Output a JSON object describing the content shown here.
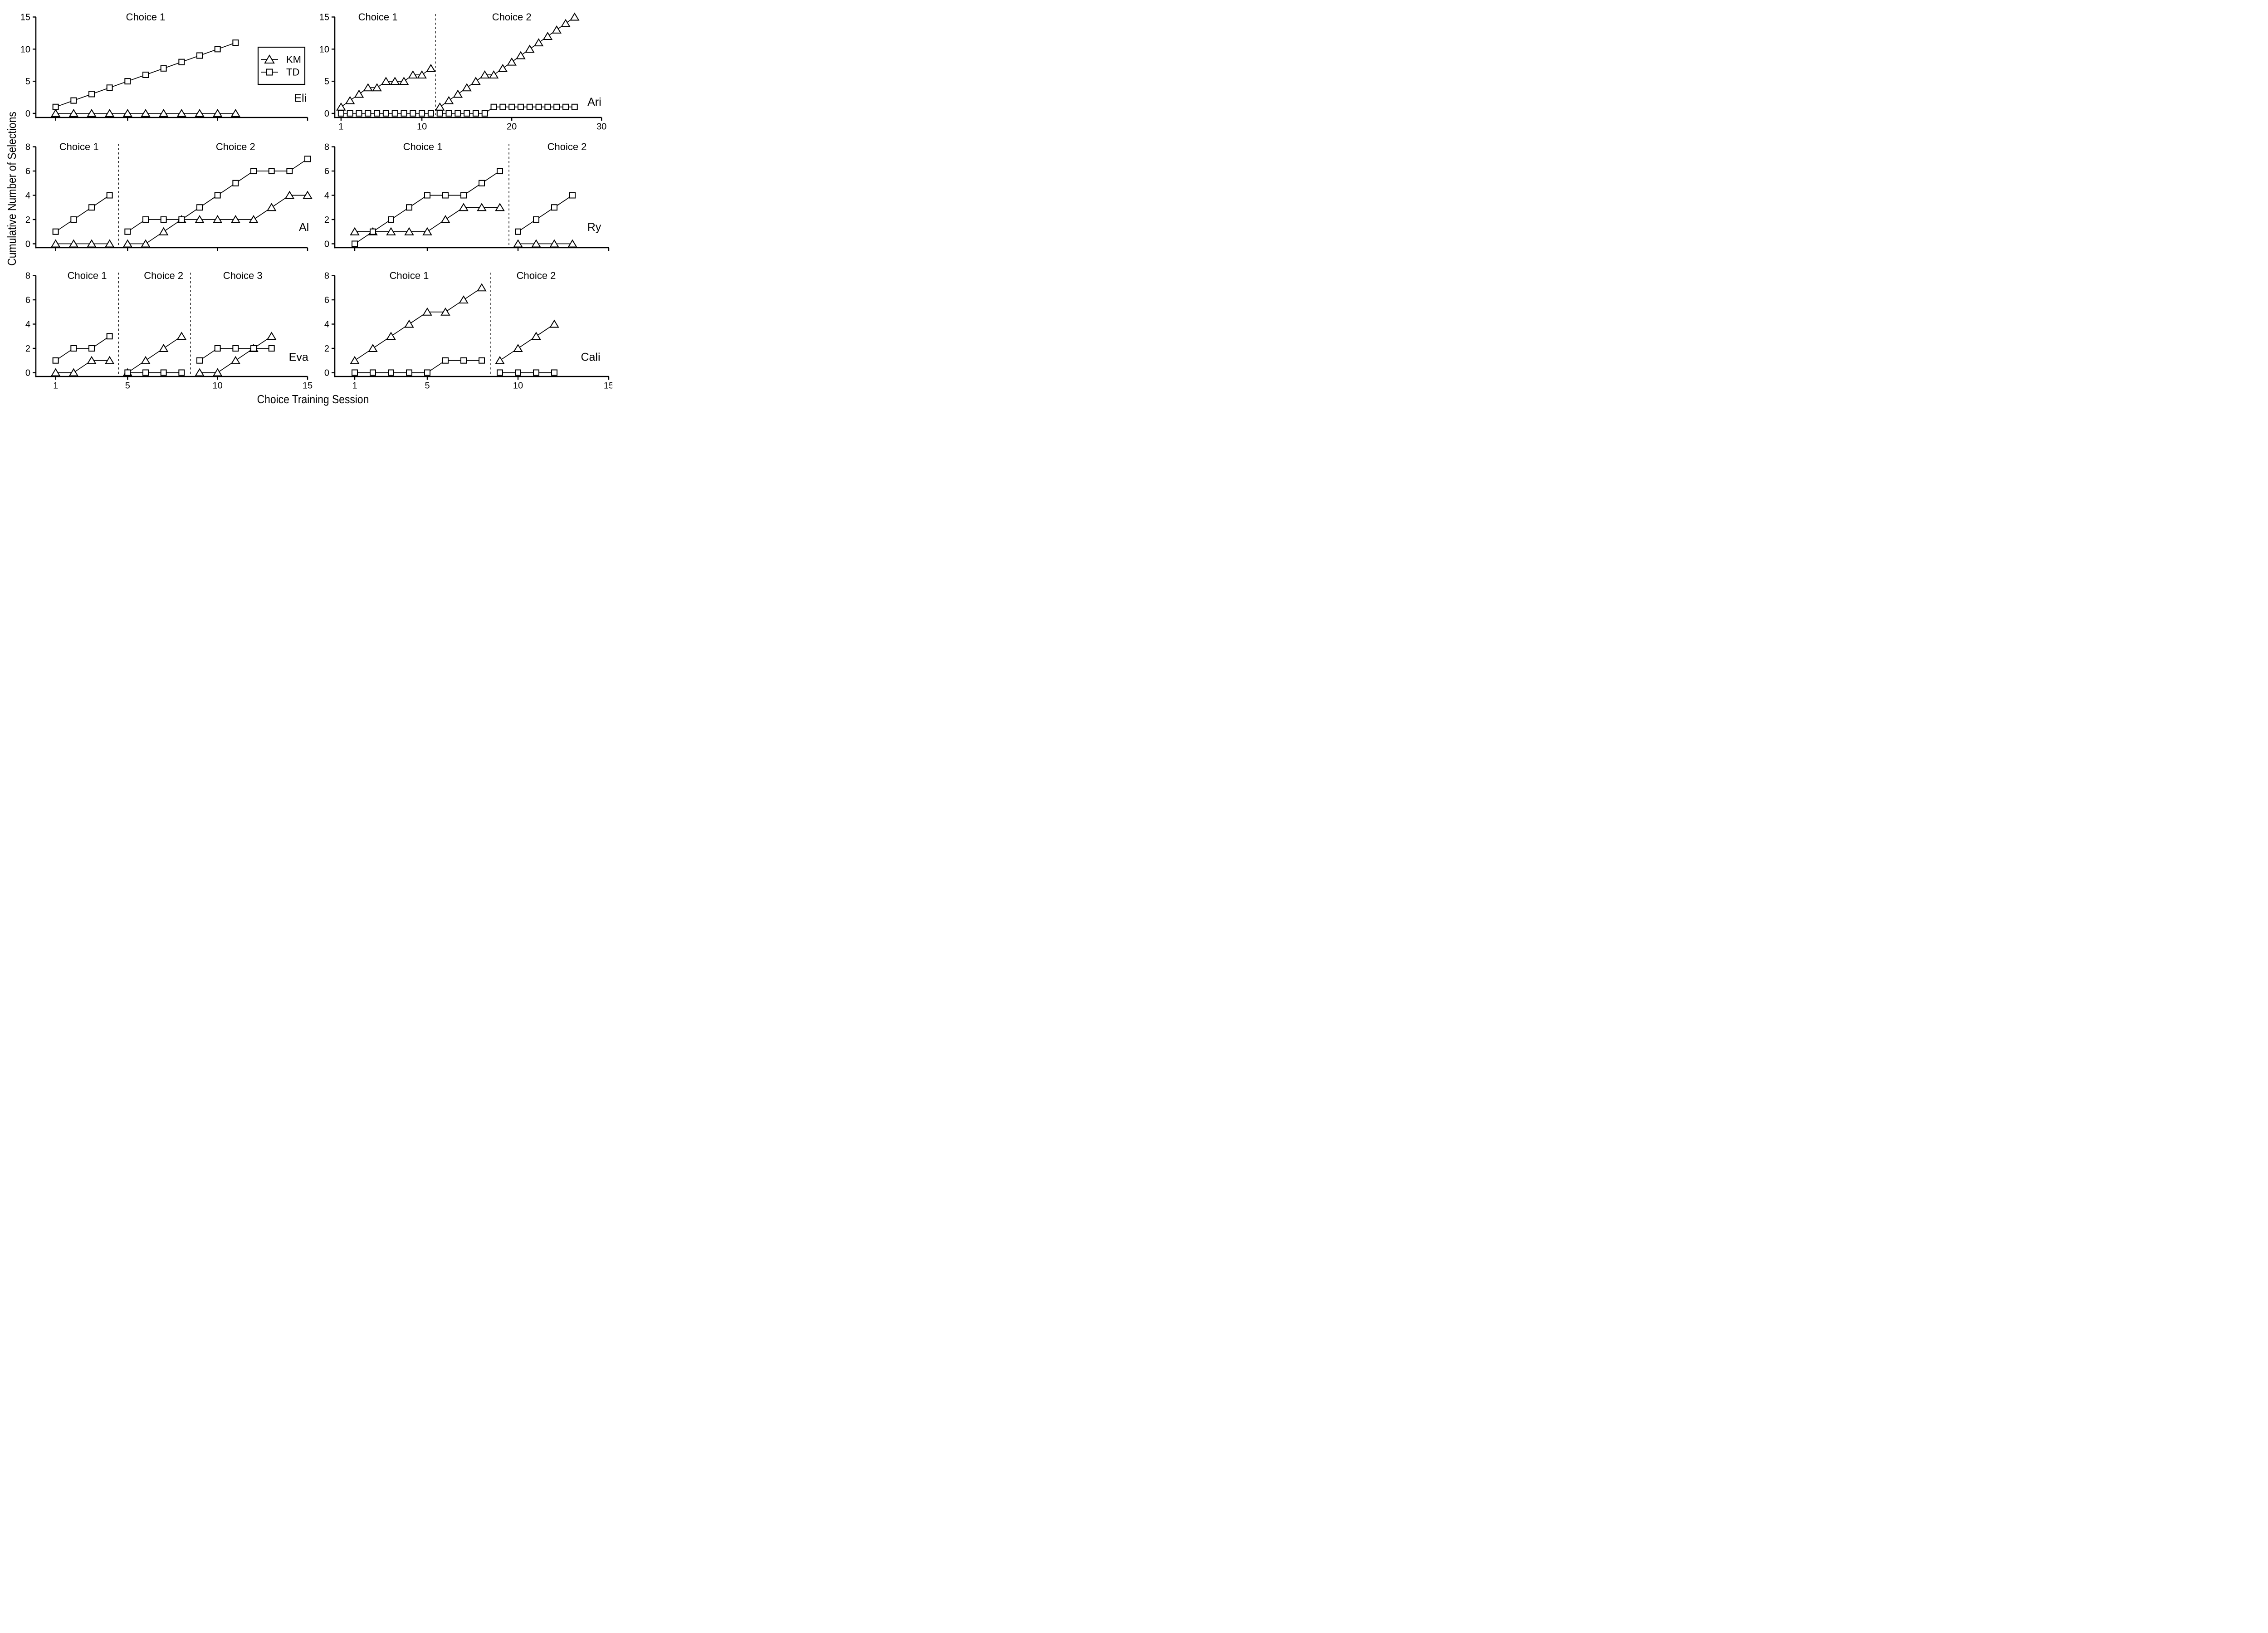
{
  "figure": {
    "background": "#ffffff",
    "ink_color": "#000000"
  },
  "chart_data": {
    "type": "line",
    "x_axis_title": "Choice Training Session",
    "y_axis_title": "Cumulative Number of Selections",
    "grid": "off",
    "legend": {
      "location": "inside-top-left-panel",
      "entries": [
        {
          "label": "KM",
          "marker": "triangle"
        },
        {
          "label": "TD",
          "marker": "square"
        }
      ]
    },
    "series_styles": {
      "km": {
        "marker": "triangle",
        "legend_label": "KM"
      },
      "td": {
        "marker": "square",
        "legend_label": "TD"
      }
    },
    "panels": [
      {
        "subject": "Eli",
        "row": 0,
        "col": 0,
        "has_legend": true,
        "x_range": [
          -0.1,
          15.1
        ],
        "y_range": [
          -0.64,
          15.6
        ],
        "x_ticks": {
          "values": [
            1,
            5,
            10,
            15
          ],
          "labels": null
        },
        "y_ticks": {
          "values": [
            0,
            5,
            10,
            15
          ],
          "labels": [
            "0",
            "5",
            "10",
            "15"
          ]
        },
        "dividers": [],
        "subject_label": {
          "text": "Eli",
          "x": 14.6,
          "y": 2.4
        },
        "phases": [
          {
            "label": "Choice 1",
            "title_x": 6.0,
            "km": {
              "x": [
                1,
                2,
                3,
                4,
                5,
                6,
                7,
                8,
                9,
                10,
                11
              ],
              "y": [
                0,
                0,
                0,
                0,
                0,
                0,
                0,
                0,
                0,
                0,
                0
              ]
            },
            "td": {
              "x": [
                1,
                2,
                3,
                4,
                5,
                6,
                7,
                8,
                9,
                10,
                11
              ],
              "y": [
                1,
                2,
                3,
                4,
                5,
                6,
                7,
                8,
                9,
                10,
                11
              ]
            }
          }
        ]
      },
      {
        "subject": "Ari",
        "row": 0,
        "col": 1,
        "has_legend": false,
        "x_range": [
          0.3,
          31.0
        ],
        "y_range": [
          -0.64,
          15.6
        ],
        "x_ticks": {
          "values": [
            1,
            10,
            20,
            30
          ],
          "labels": [
            "1",
            "10",
            "20",
            "30"
          ]
        },
        "y_ticks": {
          "values": [
            0,
            5,
            10,
            15
          ],
          "labels": [
            "0",
            "5",
            "10",
            "15"
          ]
        },
        "dividers": [
          11.5
        ],
        "subject_label": {
          "text": "Ari",
          "x": 29.2,
          "y": 1.8
        },
        "phases": [
          {
            "label": "Choice 1",
            "title_x": 5.1,
            "km": {
              "x": [
                1,
                2,
                3,
                4,
                5,
                6,
                7,
                8,
                9,
                10,
                11
              ],
              "y": [
                1,
                2,
                3,
                4,
                4,
                5,
                5,
                5,
                6,
                6,
                7
              ]
            },
            "td": {
              "x": [
                1,
                2,
                3,
                4,
                5,
                6,
                7,
                8,
                9,
                10,
                11
              ],
              "y": [
                0,
                0,
                0,
                0,
                0,
                0,
                0,
                0,
                0,
                0,
                0
              ]
            }
          },
          {
            "label": "Choice 2",
            "title_x": 20.0,
            "km": {
              "x": [
                12,
                13,
                14,
                15,
                16,
                17,
                18,
                19,
                20,
                21,
                22,
                23,
                24,
                25,
                26,
                27
              ],
              "y": [
                1,
                2,
                3,
                4,
                5,
                6,
                6,
                7,
                8,
                9,
                10,
                11,
                12,
                13,
                14,
                15
              ]
            },
            "td": {
              "x": [
                12,
                13,
                14,
                15,
                16,
                17,
                18,
                19,
                20,
                21,
                22,
                23,
                24,
                25,
                26,
                27
              ],
              "y": [
                0,
                0,
                0,
                0,
                0,
                0,
                1,
                1,
                1,
                1,
                1,
                1,
                1,
                1,
                1,
                1
              ]
            }
          }
        ]
      },
      {
        "subject": "Al",
        "row": 1,
        "col": 0,
        "has_legend": false,
        "x_range": [
          -0.1,
          15.1
        ],
        "y_range": [
          -0.32,
          8.32
        ],
        "x_ticks": {
          "values": [
            1,
            5,
            10,
            15
          ],
          "labels": null
        },
        "y_ticks": {
          "values": [
            0,
            2,
            4,
            6,
            8
          ],
          "labels": [
            "0",
            "2",
            "4",
            "6",
            "8"
          ]
        },
        "dividers": [
          4.5
        ],
        "subject_label": {
          "text": "Al",
          "x": 14.8,
          "y": 1.4
        },
        "phases": [
          {
            "label": "Choice 1",
            "title_x": 2.3,
            "km": {
              "x": [
                1,
                2,
                3,
                4
              ],
              "y": [
                0,
                0,
                0,
                0
              ]
            },
            "td": {
              "x": [
                1,
                2,
                3,
                4
              ],
              "y": [
                1,
                2,
                3,
                4
              ]
            }
          },
          {
            "label": "Choice 2",
            "title_x": 11.0,
            "km": {
              "x": [
                5,
                6,
                7,
                8,
                9,
                10,
                11,
                12,
                13,
                14,
                15
              ],
              "y": [
                0,
                0,
                1,
                2,
                2,
                2,
                2,
                2,
                3,
                4,
                4
              ]
            },
            "td": {
              "x": [
                5,
                6,
                7,
                8,
                9,
                10,
                11,
                12,
                13,
                14,
                15
              ],
              "y": [
                1,
                2,
                2,
                2,
                3,
                4,
                5,
                6,
                6,
                6,
                7
              ]
            }
          }
        ]
      },
      {
        "subject": "Ry",
        "row": 1,
        "col": 1,
        "has_legend": false,
        "x_range": [
          -0.1,
          15.1
        ],
        "y_range": [
          -0.32,
          8.32
        ],
        "x_ticks": {
          "values": [
            1,
            5,
            10,
            15
          ],
          "labels": null
        },
        "y_ticks": {
          "values": [
            0,
            2,
            4,
            6,
            8
          ],
          "labels": [
            "0",
            "2",
            "4",
            "6",
            "8"
          ]
        },
        "dividers": [
          9.5
        ],
        "subject_label": {
          "text": "Ry",
          "x": 14.2,
          "y": 1.4
        },
        "phases": [
          {
            "label": "Choice 1",
            "title_x": 4.75,
            "km": {
              "x": [
                1,
                2,
                3,
                4,
                5,
                6,
                7,
                8,
                9
              ],
              "y": [
                1,
                1,
                1,
                1,
                1,
                2,
                3,
                3,
                3
              ]
            },
            "td": {
              "x": [
                1,
                2,
                3,
                4,
                5,
                6,
                7,
                8,
                9
              ],
              "y": [
                0,
                1,
                2,
                3,
                4,
                4,
                4,
                5,
                6
              ]
            }
          },
          {
            "label": "Choice 2",
            "title_x": 12.7,
            "km": {
              "x": [
                10,
                11,
                12,
                13
              ],
              "y": [
                0,
                0,
                0,
                0
              ]
            },
            "td": {
              "x": [
                10,
                11,
                12,
                13
              ],
              "y": [
                1,
                2,
                3,
                4
              ]
            }
          }
        ]
      },
      {
        "subject": "Eva",
        "row": 2,
        "col": 0,
        "has_legend": false,
        "x_range": [
          -0.1,
          15.1
        ],
        "y_range": [
          -0.32,
          8.32
        ],
        "x_ticks": {
          "values": [
            1,
            5,
            10,
            15
          ],
          "labels": [
            "1",
            "5",
            "10",
            "15"
          ]
        },
        "y_ticks": {
          "values": [
            0,
            2,
            4,
            6,
            8
          ],
          "labels": [
            "0",
            "2",
            "4",
            "6",
            "8"
          ]
        },
        "dividers": [
          4.5,
          8.5
        ],
        "subject_label": {
          "text": "Eva",
          "x": 14.5,
          "y": 1.3
        },
        "phases": [
          {
            "label": "Choice 1",
            "title_x": 2.75,
            "km": {
              "x": [
                1,
                2,
                3,
                4
              ],
              "y": [
                0,
                0,
                1,
                1
              ]
            },
            "td": {
              "x": [
                1,
                2,
                3,
                4
              ],
              "y": [
                1,
                2,
                2,
                3
              ]
            }
          },
          {
            "label": "Choice 2",
            "title_x": 7.0,
            "km": {
              "x": [
                5,
                6,
                7,
                8
              ],
              "y": [
                0,
                1,
                2,
                3
              ]
            },
            "td": {
              "x": [
                5,
                6,
                7,
                8
              ],
              "y": [
                0,
                0,
                0,
                0
              ]
            }
          },
          {
            "label": "Choice 3",
            "title_x": 11.4,
            "km": {
              "x": [
                9,
                10,
                11,
                12,
                13
              ],
              "y": [
                0,
                0,
                1,
                2,
                3
              ]
            },
            "td": {
              "x": [
                9,
                10,
                11,
                12,
                13
              ],
              "y": [
                1,
                2,
                2,
                2,
                2
              ]
            }
          }
        ]
      },
      {
        "subject": "Cali",
        "row": 2,
        "col": 1,
        "has_legend": false,
        "x_range": [
          -0.1,
          15.1
        ],
        "y_range": [
          -0.32,
          8.32
        ],
        "x_ticks": {
          "values": [
            1,
            5,
            10,
            15
          ],
          "labels": [
            "1",
            "5",
            "10",
            "15"
          ]
        },
        "y_ticks": {
          "values": [
            0,
            2,
            4,
            6,
            8
          ],
          "labels": [
            "0",
            "2",
            "4",
            "6",
            "8"
          ]
        },
        "dividers": [
          8.5
        ],
        "subject_label": {
          "text": "Cali",
          "x": 14.0,
          "y": 1.3
        },
        "phases": [
          {
            "label": "Choice 1",
            "title_x": 4.0,
            "km": {
              "x": [
                1,
                2,
                3,
                4,
                5,
                6,
                7,
                8
              ],
              "y": [
                1,
                2,
                3,
                4,
                5,
                5,
                6,
                7
              ]
            },
            "td": {
              "x": [
                1,
                2,
                3,
                4,
                5,
                6,
                7,
                8
              ],
              "y": [
                0,
                0,
                0,
                0,
                0,
                1,
                1,
                1
              ]
            }
          },
          {
            "label": "Choice 2",
            "title_x": 11.0,
            "km": {
              "x": [
                9,
                10,
                11,
                12
              ],
              "y": [
                1,
                2,
                3,
                4
              ]
            },
            "td": {
              "x": [
                9,
                10,
                11,
                12
              ],
              "y": [
                0,
                0,
                0,
                0
              ]
            }
          }
        ]
      }
    ]
  }
}
